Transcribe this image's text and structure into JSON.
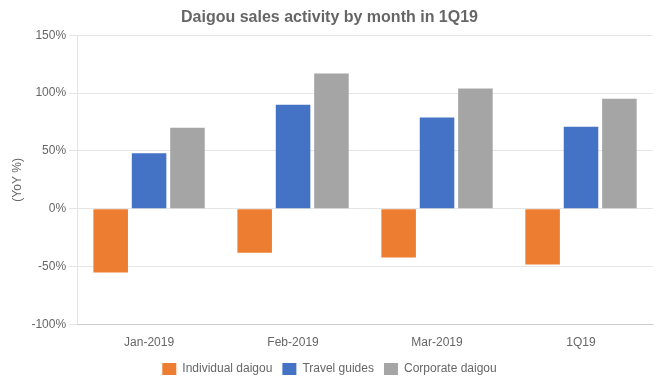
{
  "chart_data": {
    "type": "bar",
    "title": "Daigou sales activity by month in 1Q19",
    "ylabel": "(YoY %)",
    "categories": [
      "Jan-2019",
      "Feb-2019",
      "Mar-2019",
      "1Q19"
    ],
    "series": [
      {
        "name": "Individual daigou",
        "color": "#ED7D31",
        "values": [
          -55,
          -38,
          -42,
          -48
        ]
      },
      {
        "name": "Travel guides",
        "color": "#4472C4",
        "values": [
          48,
          90,
          79,
          71
        ]
      },
      {
        "name": "Corporate daigou",
        "color": "#A5A5A5",
        "values": [
          70,
          117,
          104,
          95
        ]
      }
    ],
    "ylim": [
      -100,
      150
    ],
    "yticks": [
      {
        "value": -100,
        "label": "-100%"
      },
      {
        "value": -50,
        "label": "-50%"
      },
      {
        "value": 0,
        "label": "0%"
      },
      {
        "value": 50,
        "label": "50%"
      },
      {
        "value": 100,
        "label": "100%"
      },
      {
        "value": 150,
        "label": "150%"
      }
    ],
    "grid": true,
    "legend": "bottom"
  }
}
